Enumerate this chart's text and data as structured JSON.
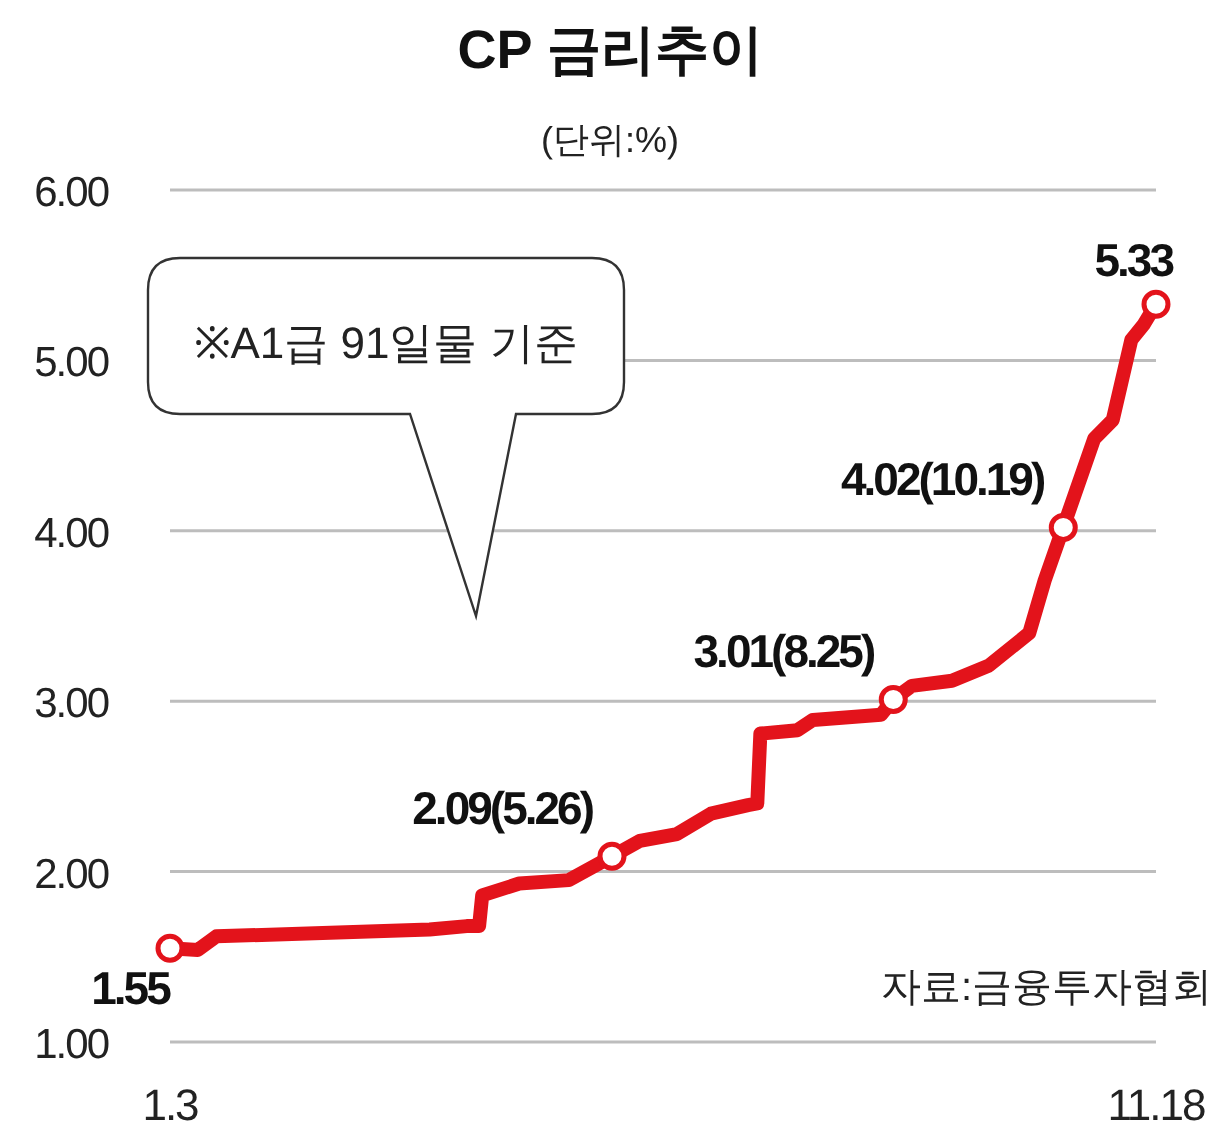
{
  "chart_data": {
    "type": "line",
    "title": "CP 금리추이",
    "subtitle": "(단위:%)",
    "x": [
      "--01-03",
      "--01-12",
      "--01-18",
      "--03-28",
      "--04-09",
      "--04-13",
      "--04-14",
      "--04-26",
      "--05-12",
      "--05-26",
      "--06-04",
      "--06-16",
      "--06-27",
      "--07-09",
      "--07-12",
      "--07-13",
      "--07-25",
      "--07-30",
      "--08-21",
      "--08-25",
      "--08-31",
      "--09-13",
      "--09-25",
      "--10-08",
      "--10-13",
      "--10-19",
      "--10-29",
      "--11-04",
      "--11-10",
      "--11-14",
      "--11-18"
    ],
    "series": [
      {
        "color": "#e3131b",
        "values": [
          1.55,
          1.54,
          1.62,
          1.66,
          1.68,
          1.68,
          1.86,
          1.93,
          1.95,
          2.09,
          2.18,
          2.22,
          2.34,
          2.39,
          2.4,
          2.81,
          2.83,
          2.89,
          2.92,
          3.01,
          3.09,
          3.12,
          3.21,
          3.4,
          3.71,
          4.02,
          4.54,
          4.65,
          5.12,
          5.21,
          5.33
        ]
      }
    ],
    "xlim": [
      "--01-03",
      "--11-18"
    ],
    "xticks": [
      {
        "value": "--01-03",
        "label": "1.3"
      },
      {
        "value": "--11-18",
        "label": "11.18"
      }
    ],
    "ylim": [
      1,
      6
    ],
    "yticks": [
      {
        "value": 1,
        "label": "1.00"
      },
      {
        "value": 2,
        "label": "2.00"
      },
      {
        "value": 3,
        "label": "3.00"
      },
      {
        "value": 4,
        "label": "4.00"
      },
      {
        "value": 5,
        "label": "5.00"
      },
      {
        "value": 6,
        "label": "6.00"
      }
    ],
    "grid": "y",
    "line_style": "solid",
    "annotations": [
      {
        "text": "1.55",
        "x": "--01-03",
        "y": 1.55
      },
      {
        "text": "2.09(5.26)",
        "x": "--05-26",
        "y": 2.09
      },
      {
        "text": "3.01(8.25)",
        "x": "--08-25",
        "y": 3.01
      },
      {
        "text": "4.02(10.19)",
        "x": "--10-19",
        "y": 4.02
      },
      {
        "text": "5.33",
        "x": "--11-18",
        "y": 5.33
      },
      "※A1급 91일물 기준",
      "자료:금융투자협회"
    ]
  }
}
